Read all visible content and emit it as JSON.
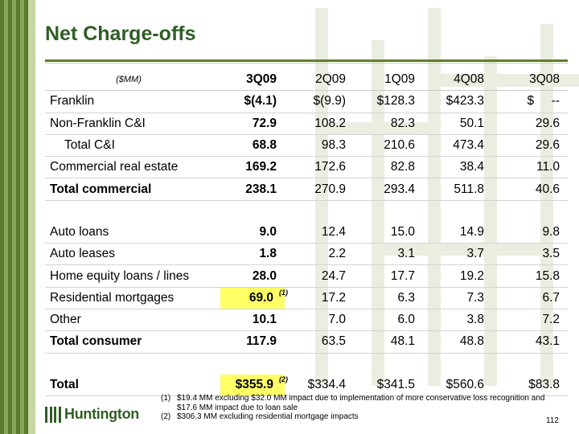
{
  "title": "Net Charge-offs",
  "unit": "($MM)",
  "columns": [
    "3Q09",
    "2Q09",
    "1Q09",
    "4Q08",
    "3Q08"
  ],
  "rows": [
    {
      "label": "Franklin",
      "values": [
        "$(4.1)",
        "$(9.9)",
        "$128.3",
        "$423.3",
        "$     --"
      ]
    },
    {
      "label": "Non-Franklin C&I",
      "values": [
        "72.9",
        "108.2",
        "82.3",
        "50.1",
        "29.6"
      ]
    },
    {
      "label": "Total C&I",
      "values": [
        "68.8",
        "98.3",
        "210.6",
        "473.4",
        "29.6"
      ]
    },
    {
      "label": "Commercial real estate",
      "values": [
        "169.2",
        "172.6",
        "82.8",
        "38.4",
        "11.0"
      ]
    },
    {
      "label": "Total commercial",
      "values": [
        "238.1",
        "270.9",
        "293.4",
        "511.8",
        "40.6"
      ]
    },
    {
      "label": "Auto loans",
      "values": [
        "9.0",
        "12.4",
        "15.0",
        "14.9",
        "9.8"
      ]
    },
    {
      "label": "Auto leases",
      "values": [
        "1.8",
        "2.2",
        "3.1",
        "3.7",
        "3.5"
      ]
    },
    {
      "label": "Home equity loans / lines",
      "values": [
        "28.0",
        "24.7",
        "17.7",
        "19.2",
        "15.8"
      ]
    },
    {
      "label": "Residential mortgages",
      "values": [
        "69.0",
        "17.2",
        "6.3",
        "7.3",
        "6.7"
      ],
      "note": "(1)"
    },
    {
      "label": "Other",
      "values": [
        "10.1",
        "7.0",
        "6.0",
        "3.8",
        "7.2"
      ]
    },
    {
      "label": "Total consumer",
      "values": [
        "117.9",
        "63.5",
        "48.1",
        "48.8",
        "43.1"
      ]
    },
    {
      "label": "Total",
      "values": [
        "$355.9",
        "$334.4",
        "$341.5",
        "$560.6",
        "$83.8"
      ],
      "note": "(2)"
    }
  ],
  "footnotes": [
    {
      "num": "(1)",
      "text": "$19.4 MM excluding $32.0 MM impact due to implementation of more conservative loss recognition and $17.6 MM impact due to loan sale"
    },
    {
      "num": "(2)",
      "text": "$306.3 MM excluding residential mortgage impacts"
    }
  ],
  "logo": "Huntington",
  "page_number": "112",
  "colors": {
    "brand_green": "#2f5e24",
    "highlight": "#ffff66"
  }
}
